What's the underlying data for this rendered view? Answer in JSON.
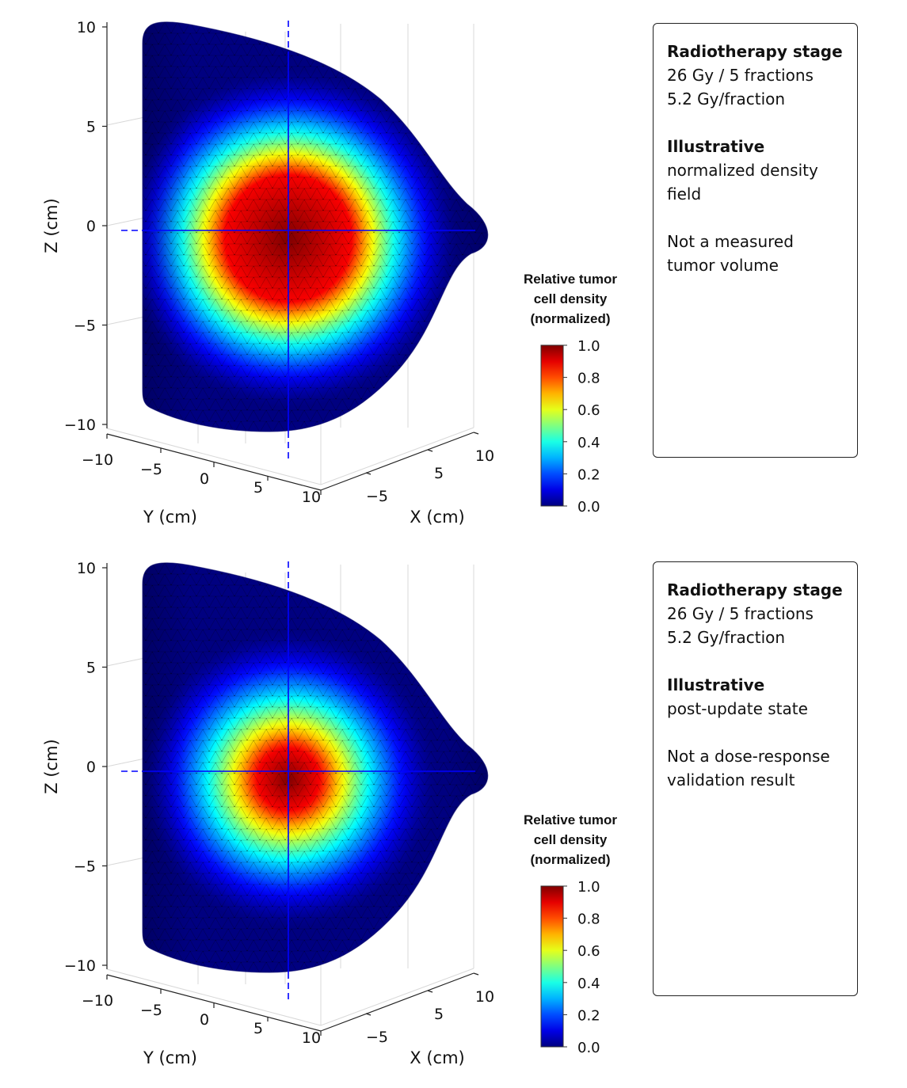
{
  "chart_data": [
    {
      "type": "surface-3d",
      "xlabel": "X (cm)",
      "ylabel": "Y (cm)",
      "zlabel": "Z (cm)",
      "x_ticks": [
        "−5",
        "5",
        "10"
      ],
      "y_ticks": [
        "−10",
        "−5",
        "0",
        "5",
        "10"
      ],
      "z_ticks": [
        "10",
        "5",
        "0",
        "−5",
        "−10"
      ],
      "xlim": [
        -10,
        10
      ],
      "ylim": [
        -10,
        10
      ],
      "zlim": [
        -10,
        10
      ],
      "grid": true,
      "colormap": "jet",
      "colorbar": {
        "title_lines": [
          "Relative tumor",
          "cell density",
          "(normalized)"
        ],
        "ticks": [
          "1.0",
          "0.8",
          "0.6",
          "0.4",
          "0.2",
          "0.0"
        ],
        "range": [
          0,
          1
        ]
      },
      "density_field": {
        "peak_value": 1.0,
        "high_density_radius_cm": 3.2,
        "falloff_radius_cm": 8.5
      },
      "info": {
        "heading1": "Radiotherapy stage",
        "line1": "26 Gy / 5 fractions",
        "line2": "5.2 Gy/fraction",
        "heading2": "Illustrative",
        "line3": "normalized density",
        "line4": "field",
        "line5": "Not a measured",
        "line6": "tumor volume"
      }
    },
    {
      "type": "surface-3d",
      "xlabel": "X (cm)",
      "ylabel": "Y (cm)",
      "zlabel": "Z (cm)",
      "x_ticks": [
        "−5",
        "5",
        "10"
      ],
      "y_ticks": [
        "−10",
        "−5",
        "0",
        "5",
        "10"
      ],
      "z_ticks": [
        "10",
        "5",
        "0",
        "−5",
        "−10"
      ],
      "xlim": [
        -10,
        10
      ],
      "ylim": [
        -10,
        10
      ],
      "zlim": [
        -10,
        10
      ],
      "grid": true,
      "colormap": "jet",
      "colorbar": {
        "title_lines": [
          "Relative tumor",
          "cell density",
          "(normalized)"
        ],
        "ticks": [
          "1.0",
          "0.8",
          "0.6",
          "0.4",
          "0.2",
          "0.0"
        ],
        "range": [
          0,
          1
        ]
      },
      "density_field": {
        "peak_value": 1.0,
        "high_density_radius_cm": 1.6,
        "falloff_radius_cm": 7.5
      },
      "info": {
        "heading1": "Radiotherapy stage",
        "line1": "26 Gy / 5 fractions",
        "line2": "5.2 Gy/fraction",
        "heading2": "Illustrative",
        "line3": "post-update state",
        "line4": "",
        "line5": "Not a dose-response",
        "line6": "validation result"
      }
    }
  ]
}
